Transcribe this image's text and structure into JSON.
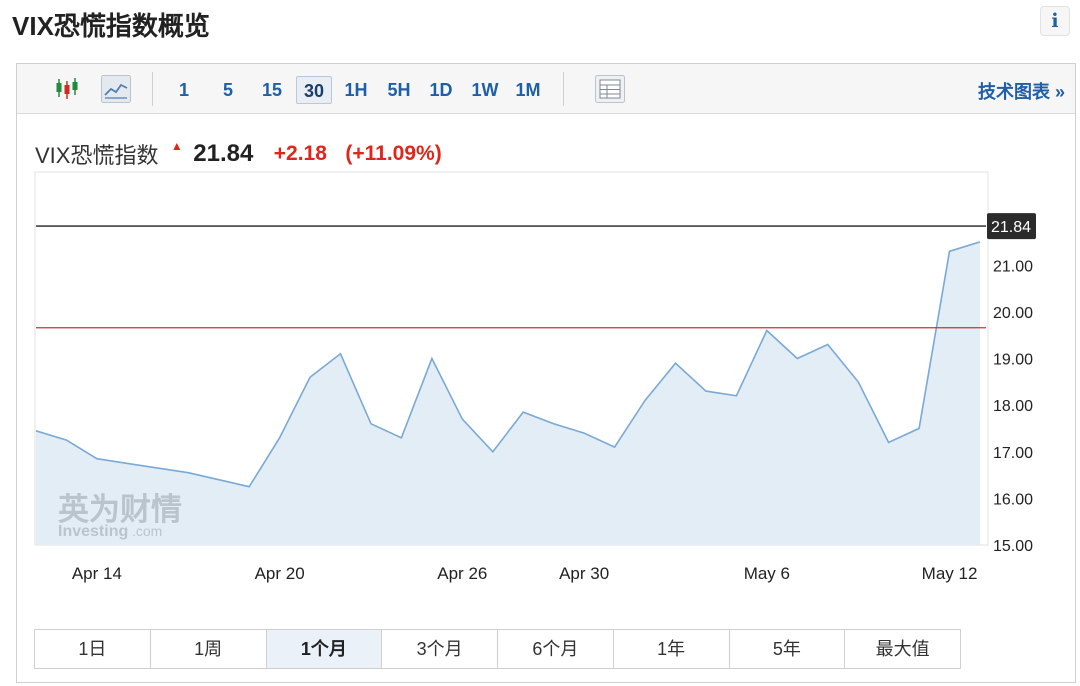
{
  "page": {
    "title": "VIX恐慌指数概览",
    "info_icon": "info-icon"
  },
  "toolbar": {
    "chart_type_icons": [
      "candlestick-icon",
      "line-chart-icon"
    ],
    "intervals": [
      "1",
      "5",
      "15",
      "30",
      "1H",
      "5H",
      "1D",
      "1W",
      "1M"
    ],
    "active_interval": "30",
    "table_icon": "table-view-icon",
    "tech_chart_label": "技术图表 »"
  },
  "quote": {
    "name": "VIX恐慌指数",
    "arrow": "▲",
    "price": "21.84",
    "change": "+2.18",
    "change_pct": "(+11.09%)"
  },
  "ranges": [
    "1日",
    "1周",
    "1个月",
    "3个月",
    "6个月",
    "1年",
    "5年",
    "最大值"
  ],
  "active_range": "1个月",
  "watermark": {
    "brand_cn": "英为财情",
    "brand_en": "Investing",
    "brand_suffix": ".com"
  },
  "colors": {
    "up": "#e0251b",
    "link": "#1f5fa8",
    "line": "#7aa9d6",
    "area": "#e3edf6",
    "ref_line": "#c0392b"
  },
  "chart_data": {
    "type": "area",
    "title": "",
    "xlabel": "",
    "ylabel": "",
    "ylim": [
      15.0,
      23.0
    ],
    "y_ticks": [
      "15.00",
      "16.00",
      "17.00",
      "18.00",
      "19.00",
      "20.00",
      "21.00"
    ],
    "x_tick_labels": [
      "Apr 14",
      "Apr 20",
      "Apr 26",
      "Apr 30",
      "May 6",
      "May 12"
    ],
    "current_value": 21.84,
    "current_label": "21.84",
    "reference_value": 19.66,
    "grid": false,
    "x": [
      "Apr 12",
      "Apr 13",
      "Apr 14",
      "Apr 15",
      "Apr 16",
      "Apr 17",
      "Apr 18",
      "Apr 19",
      "Apr 20",
      "Apr 21",
      "Apr 22",
      "Apr 23",
      "Apr 24",
      "Apr 25",
      "Apr 26",
      "Apr 27",
      "Apr 28",
      "Apr 29",
      "Apr 30",
      "May 1",
      "May 2",
      "May 3",
      "May 4",
      "May 5",
      "May 6",
      "May 7",
      "May 8",
      "May 9",
      "May 10",
      "May 11",
      "May 12",
      "May 13"
    ],
    "series": [
      {
        "values": [
          17.45,
          17.25,
          16.85,
          16.75,
          16.65,
          16.55,
          16.4,
          16.25,
          17.3,
          18.6,
          19.1,
          17.6,
          17.3,
          19.0,
          17.7,
          17.0,
          17.85,
          17.6,
          17.4,
          17.1,
          18.1,
          18.9,
          18.3,
          18.2,
          19.6,
          19.0,
          19.3,
          18.5,
          17.2,
          17.5,
          21.3,
          21.5
        ]
      }
    ]
  }
}
